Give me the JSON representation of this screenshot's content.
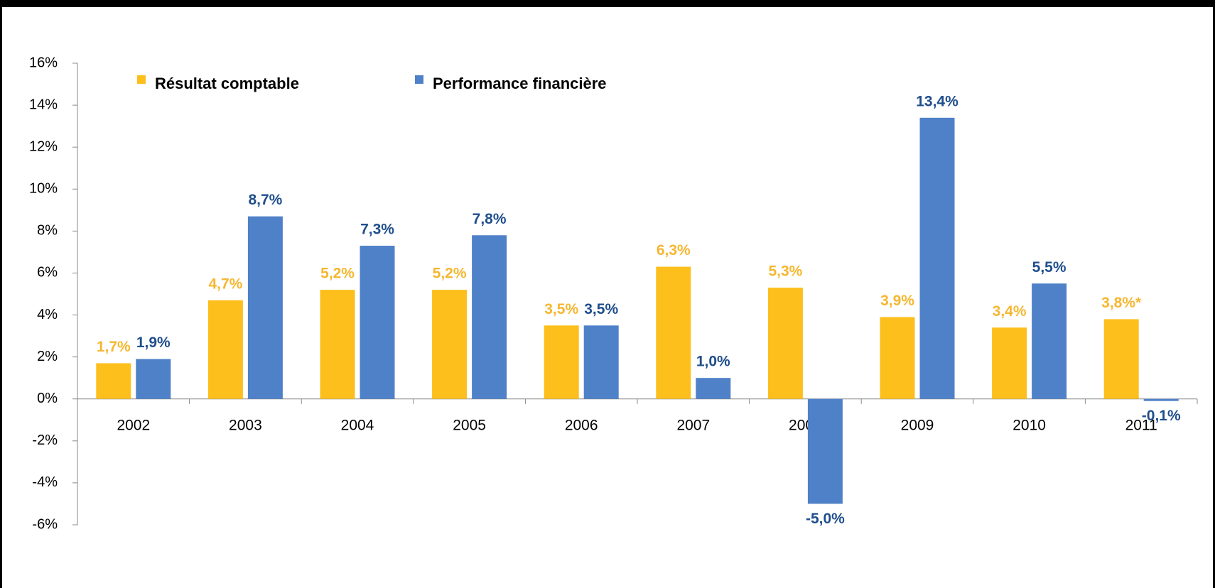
{
  "chart_data": {
    "type": "bar",
    "categories": [
      "2002",
      "2003",
      "2004",
      "2005",
      "2006",
      "2007",
      "2008",
      "2009",
      "2010",
      "2011"
    ],
    "series": [
      {
        "name": "Résultat comptable",
        "color": "#FDBF1C",
        "label_color": "#F5B731",
        "values": [
          1.7,
          4.7,
          5.2,
          5.2,
          3.5,
          6.3,
          5.3,
          3.9,
          3.4,
          3.8
        ],
        "value_labels": [
          "1,7%",
          "4,7%",
          "5,2%",
          "5,2%",
          "3,5%",
          "6,3%",
          "5,3%",
          "3,9%",
          "3,4%",
          "3,8%*"
        ]
      },
      {
        "name": "Performance financière",
        "color": "#4F81C9",
        "label_color": "#1F4E8C",
        "values": [
          1.9,
          8.7,
          7.3,
          7.8,
          3.5,
          1.0,
          -5.0,
          13.4,
          5.5,
          -0.1
        ],
        "value_labels": [
          "1,9%",
          "8,7%",
          "7,3%",
          "7,8%",
          "3,5%",
          "1,0%",
          "-5,0%",
          "13,4%",
          "5,5%",
          "-0,1%"
        ]
      }
    ],
    "ylim": [
      -6,
      16
    ],
    "yticks": [
      {
        "value": -6,
        "label": "-6%"
      },
      {
        "value": -4,
        "label": "-4%"
      },
      {
        "value": -2,
        "label": "-2%"
      },
      {
        "value": 0,
        "label": "0%"
      },
      {
        "value": 2,
        "label": "2%"
      },
      {
        "value": 4,
        "label": "4%"
      },
      {
        "value": 6,
        "label": "6%"
      },
      {
        "value": 8,
        "label": "8%"
      },
      {
        "value": 10,
        "label": "10%"
      },
      {
        "value": 12,
        "label": "12%"
      },
      {
        "value": 14,
        "label": "14%"
      },
      {
        "value": 16,
        "label": "16%"
      }
    ],
    "legend": "top-left"
  }
}
